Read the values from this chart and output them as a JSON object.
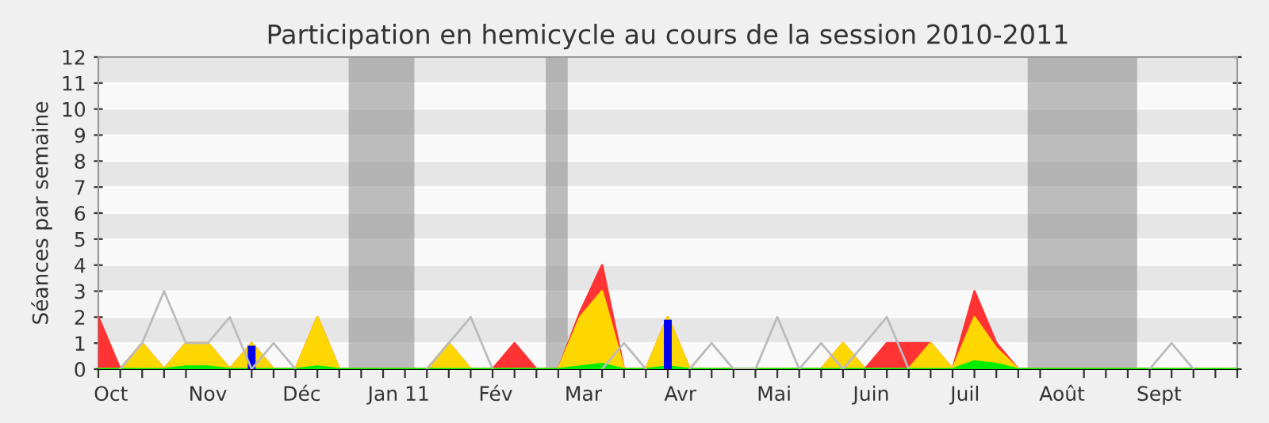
{
  "chart_data": {
    "type": "area",
    "title": "Participation en hemicycle au cours de la session 2010-2011",
    "ylabel": "Séances par semaine",
    "x": [
      "2010-09-27",
      "2010-10-04",
      "2010-10-11",
      "2010-10-18",
      "2010-10-25",
      "2010-11-01",
      "2010-11-08",
      "2010-11-15",
      "2010-11-22",
      "2010-11-29",
      "2010-12-06",
      "2010-12-13",
      "2010-12-20",
      "2010-12-27",
      "2011-01-03",
      "2011-01-10",
      "2011-01-17",
      "2011-01-24",
      "2011-01-31",
      "2011-02-07",
      "2011-02-14",
      "2011-02-21",
      "2011-02-28",
      "2011-03-07",
      "2011-03-14",
      "2011-03-21",
      "2011-03-28",
      "2011-04-04",
      "2011-04-11",
      "2011-04-18",
      "2011-04-25",
      "2011-05-02",
      "2011-05-09",
      "2011-05-16",
      "2011-05-23",
      "2011-05-30",
      "2011-06-06",
      "2011-06-13",
      "2011-06-20",
      "2011-06-27",
      "2011-07-04",
      "2011-07-11",
      "2011-07-18",
      "2011-07-25",
      "2011-08-01",
      "2011-08-08",
      "2011-08-15",
      "2011-08-22",
      "2011-08-29",
      "2011-09-05",
      "2011-09-12",
      "2011-09-19",
      "2011-09-26"
    ],
    "series": [
      {
        "type": "line",
        "color": "#bbbbbb",
        "values": [
          null,
          0,
          1,
          3,
          1,
          1,
          2,
          0,
          1,
          0,
          null,
          null,
          null,
          null,
          null,
          0,
          1,
          2,
          0,
          null,
          null,
          null,
          null,
          0,
          1,
          0,
          null,
          0,
          1,
          0,
          0,
          2,
          0,
          1,
          0,
          1,
          2,
          0,
          null,
          null,
          null,
          null,
          null,
          null,
          null,
          null,
          null,
          null,
          0,
          1,
          0,
          null,
          null
        ]
      },
      {
        "color": "#ff3333",
        "values": [
          2,
          0,
          1,
          0,
          1,
          1,
          0,
          1,
          0,
          0,
          2,
          0,
          0,
          0,
          0,
          0,
          1,
          0,
          0,
          1,
          0,
          0,
          2.2,
          4,
          0,
          0,
          2,
          0,
          0,
          0,
          0,
          0,
          0,
          0,
          1,
          0,
          1,
          1,
          1,
          0,
          3,
          1,
          0,
          0,
          0,
          0,
          0,
          0,
          0,
          0,
          0,
          0,
          0
        ]
      },
      {
        "color": "#ffd700",
        "values": [
          0,
          0,
          1,
          0,
          1,
          1,
          0,
          1,
          0,
          0,
          2,
          0,
          0,
          0,
          0,
          0,
          1,
          0,
          0,
          0,
          0,
          0,
          2,
          3,
          0,
          0,
          2,
          0,
          0,
          0,
          0,
          0,
          0,
          0,
          1,
          0,
          0,
          0,
          1,
          0,
          2,
          0.8,
          0,
          0,
          0,
          0,
          0,
          0,
          0,
          0,
          0,
          0,
          0
        ]
      },
      {
        "color": "#00ee00",
        "values": [
          0,
          0,
          0,
          0,
          0.1,
          0.1,
          0,
          0,
          0,
          0,
          0.1,
          0,
          0,
          0,
          0,
          0,
          0,
          0,
          0,
          0,
          0,
          0,
          0.1,
          0.2,
          0,
          0,
          0.1,
          0,
          0,
          0,
          0,
          0,
          0,
          0,
          0,
          0,
          0,
          0,
          0,
          0,
          0.3,
          0.2,
          0,
          0,
          0,
          0,
          0,
          0,
          0,
          0,
          0,
          0,
          0
        ]
      },
      {
        "type": "bar",
        "color": "#0000ee",
        "values": [
          null,
          null,
          null,
          null,
          null,
          null,
          null,
          0.9,
          null,
          null,
          null,
          null,
          null,
          null,
          null,
          null,
          null,
          null,
          null,
          null,
          null,
          null,
          null,
          null,
          null,
          null,
          1.9,
          null,
          null,
          null,
          null,
          null,
          null,
          null,
          null,
          null,
          null,
          null,
          null,
          null,
          null,
          null,
          null,
          null,
          null,
          null,
          null,
          null,
          null,
          null,
          null,
          null,
          null
        ]
      }
    ],
    "xlim": [
      "2010-09-27",
      "2011-09-26"
    ],
    "xticks": [
      {
        "value": "2010-09-27",
        "label": null
      },
      {
        "value": "2010-10-01",
        "label": "Oct"
      },
      {
        "value": "2010-10-04",
        "label": null
      },
      {
        "value": "2010-10-11",
        "label": null
      },
      {
        "value": "2010-10-18",
        "label": null
      },
      {
        "value": "2010-10-25",
        "label": null
      },
      {
        "value": "2010-11-01",
        "label": "Nov"
      },
      {
        "value": "2010-11-08",
        "label": null
      },
      {
        "value": "2010-11-15",
        "label": null
      },
      {
        "value": "2010-11-22",
        "label": null
      },
      {
        "value": "2010-11-29",
        "label": null
      },
      {
        "value": "2010-12-01",
        "label": "Déc"
      },
      {
        "value": "2010-12-06",
        "label": null
      },
      {
        "value": "2010-12-13",
        "label": null
      },
      {
        "value": "2010-12-20",
        "label": null
      },
      {
        "value": "2010-12-27",
        "label": null
      },
      {
        "value": "2011-01-01",
        "label": "Jan 11"
      },
      {
        "value": "2011-01-03",
        "label": null
      },
      {
        "value": "2011-01-10",
        "label": null
      },
      {
        "value": "2011-01-17",
        "label": null
      },
      {
        "value": "2011-01-24",
        "label": null
      },
      {
        "value": "2011-01-31",
        "label": null
      },
      {
        "value": "2011-02-01",
        "label": "Fév"
      },
      {
        "value": "2011-02-07",
        "label": null
      },
      {
        "value": "2011-02-14",
        "label": null
      },
      {
        "value": "2011-02-21",
        "label": null
      },
      {
        "value": "2011-02-28",
        "label": null
      },
      {
        "value": "2011-03-01",
        "label": "Mar"
      },
      {
        "value": "2011-03-07",
        "label": null
      },
      {
        "value": "2011-03-14",
        "label": null
      },
      {
        "value": "2011-03-21",
        "label": null
      },
      {
        "value": "2011-03-28",
        "label": null
      },
      {
        "value": "2011-04-01",
        "label": "Avr"
      },
      {
        "value": "2011-04-04",
        "label": null
      },
      {
        "value": "2011-04-11",
        "label": null
      },
      {
        "value": "2011-04-18",
        "label": null
      },
      {
        "value": "2011-04-25",
        "label": null
      },
      {
        "value": "2011-05-01",
        "label": "Mai"
      },
      {
        "value": "2011-05-02",
        "label": null
      },
      {
        "value": "2011-05-09",
        "label": null
      },
      {
        "value": "2011-05-16",
        "label": null
      },
      {
        "value": "2011-05-23",
        "label": null
      },
      {
        "value": "2011-05-30",
        "label": null
      },
      {
        "value": "2011-06-01",
        "label": "Juin"
      },
      {
        "value": "2011-06-06",
        "label": null
      },
      {
        "value": "2011-06-13",
        "label": null
      },
      {
        "value": "2011-06-20",
        "label": null
      },
      {
        "value": "2011-06-27",
        "label": null
      },
      {
        "value": "2011-07-01",
        "label": "Juil"
      },
      {
        "value": "2011-07-04",
        "label": null
      },
      {
        "value": "2011-07-11",
        "label": null
      },
      {
        "value": "2011-07-18",
        "label": null
      },
      {
        "value": "2011-07-25",
        "label": null
      },
      {
        "value": "2011-08-01",
        "label": "Août"
      },
      {
        "value": "2011-08-08",
        "label": null
      },
      {
        "value": "2011-08-15",
        "label": null
      },
      {
        "value": "2011-08-22",
        "label": null
      },
      {
        "value": "2011-08-29",
        "label": null
      },
      {
        "value": "2011-09-01",
        "label": "Sept"
      },
      {
        "value": "2011-09-05",
        "label": null
      },
      {
        "value": "2011-09-12",
        "label": null
      },
      {
        "value": "2011-09-19",
        "label": null
      },
      {
        "value": "2011-09-26",
        "label": null
      }
    ],
    "ylim": [
      0,
      12
    ],
    "yticks": [
      0,
      1,
      2,
      3,
      4,
      5,
      6,
      7,
      8,
      9,
      10,
      11,
      12
    ],
    "grid": "y",
    "bands": [
      {
        "axis": "x",
        "from": "2010-12-16",
        "to": "2011-01-06",
        "color": "#808080"
      },
      {
        "axis": "x",
        "from": "2011-02-17",
        "to": "2011-02-24",
        "color": "#808080"
      },
      {
        "axis": "x",
        "from": "2011-07-21",
        "to": "2011-08-25",
        "color": "#808080"
      }
    ]
  }
}
